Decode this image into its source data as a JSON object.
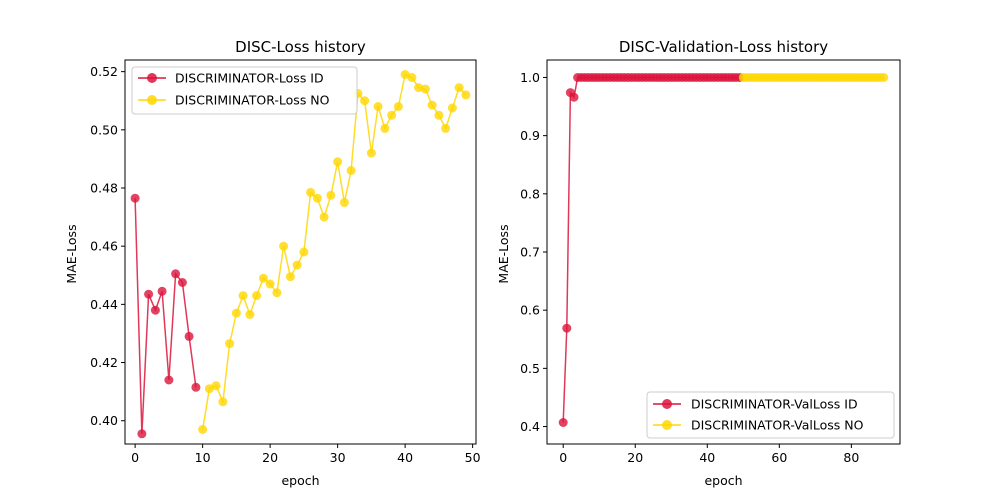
{
  "chart_data": [
    {
      "type": "line",
      "title": "DISC-Loss history",
      "xlabel": "epoch",
      "ylabel": "MAE-Loss",
      "xlim": [
        -1.5,
        50.5
      ],
      "ylim": [
        0.392,
        0.524
      ],
      "xticks": [
        "0",
        "10",
        "20",
        "30",
        "40",
        "50"
      ],
      "yticks": [
        "0.40",
        "0.42",
        "0.44",
        "0.46",
        "0.48",
        "0.50",
        "0.52"
      ],
      "grid": false,
      "legend_position": "top-left",
      "series": [
        {
          "name": "DISCRIMINATOR-Loss ID",
          "color": "#dc143c",
          "x": [
            0,
            1,
            2,
            3,
            4,
            5,
            6,
            7,
            8,
            9
          ],
          "y": [
            0.4765,
            0.3955,
            0.4435,
            0.438,
            0.4445,
            0.414,
            0.4505,
            0.4475,
            0.429,
            0.4115
          ]
        },
        {
          "name": "DISCRIMINATOR-Loss NO",
          "color": "#ffd700",
          "x": [
            10,
            11,
            12,
            13,
            14,
            15,
            16,
            17,
            18,
            19,
            20,
            21,
            22,
            23,
            24,
            25,
            26,
            27,
            28,
            29,
            30,
            31,
            32,
            33,
            34,
            35,
            36,
            37,
            38,
            39,
            40,
            41,
            42,
            43,
            44,
            45,
            46,
            47,
            48,
            49
          ],
          "y": [
            0.397,
            0.411,
            0.412,
            0.4065,
            0.4265,
            0.437,
            0.443,
            0.4365,
            0.443,
            0.449,
            0.447,
            0.444,
            0.46,
            0.4495,
            0.4535,
            0.458,
            0.4785,
            0.4765,
            0.47,
            0.4775,
            0.489,
            0.475,
            0.486,
            0.5125,
            0.51,
            0.492,
            0.508,
            0.5005,
            0.505,
            0.508,
            0.519,
            0.518,
            0.5145,
            0.514,
            0.5085,
            0.505,
            0.5005,
            0.5075,
            0.5145,
            0.512
          ]
        }
      ]
    },
    {
      "type": "line",
      "title": "DISC-Validation-Loss history",
      "xlabel": "epoch",
      "ylabel": "MAE-Loss",
      "xlim": [
        -4.5,
        93.5
      ],
      "ylim": [
        0.37,
        1.03
      ],
      "xticks": [
        "0",
        "20",
        "40",
        "60",
        "80"
      ],
      "yticks": [
        "0.4",
        "0.5",
        "0.6",
        "0.7",
        "0.8",
        "0.9",
        "1.0"
      ],
      "grid": false,
      "legend_position": "bottom-right",
      "series": [
        {
          "name": "DISCRIMINATOR-ValLoss ID",
          "color": "#dc143c",
          "x": [
            0,
            1,
            2,
            3,
            4,
            5,
            6,
            7,
            8,
            9,
            10,
            11,
            12,
            13,
            14,
            15,
            16,
            17,
            18,
            19,
            20,
            21,
            22,
            23,
            24,
            25,
            26,
            27,
            28,
            29,
            30,
            31,
            32,
            33,
            34,
            35,
            36,
            37,
            38,
            39,
            40,
            41,
            42,
            43,
            44,
            45,
            46,
            47,
            48,
            49
          ],
          "y": [
            0.407,
            0.569,
            0.974,
            0.966,
            1.0,
            1.0,
            1.0,
            1.0,
            1.0,
            1.0,
            1.0,
            1.0,
            1.0,
            1.0,
            1.0,
            1.0,
            1.0,
            1.0,
            1.0,
            1.0,
            1.0,
            1.0,
            1.0,
            1.0,
            1.0,
            1.0,
            1.0,
            1.0,
            1.0,
            1.0,
            1.0,
            1.0,
            1.0,
            1.0,
            1.0,
            1.0,
            1.0,
            1.0,
            1.0,
            1.0,
            1.0,
            1.0,
            1.0,
            1.0,
            1.0,
            1.0,
            1.0,
            1.0,
            1.0,
            1.0
          ]
        },
        {
          "name": "DISCRIMINATOR-ValLoss NO",
          "color": "#ffd700",
          "x": [
            50,
            51,
            52,
            53,
            54,
            55,
            56,
            57,
            58,
            59,
            60,
            61,
            62,
            63,
            64,
            65,
            66,
            67,
            68,
            69,
            70,
            71,
            72,
            73,
            74,
            75,
            76,
            77,
            78,
            79,
            80,
            81,
            82,
            83,
            84,
            85,
            86,
            87,
            88,
            89
          ],
          "y": [
            1.0,
            1.0,
            1.0,
            1.0,
            1.0,
            1.0,
            1.0,
            1.0,
            1.0,
            1.0,
            1.0,
            1.0,
            1.0,
            1.0,
            1.0,
            1.0,
            1.0,
            1.0,
            1.0,
            1.0,
            1.0,
            1.0,
            1.0,
            1.0,
            1.0,
            1.0,
            1.0,
            1.0,
            1.0,
            1.0,
            1.0,
            1.0,
            1.0,
            1.0,
            1.0,
            1.0,
            1.0,
            1.0,
            1.0,
            1.0
          ]
        }
      ]
    }
  ]
}
